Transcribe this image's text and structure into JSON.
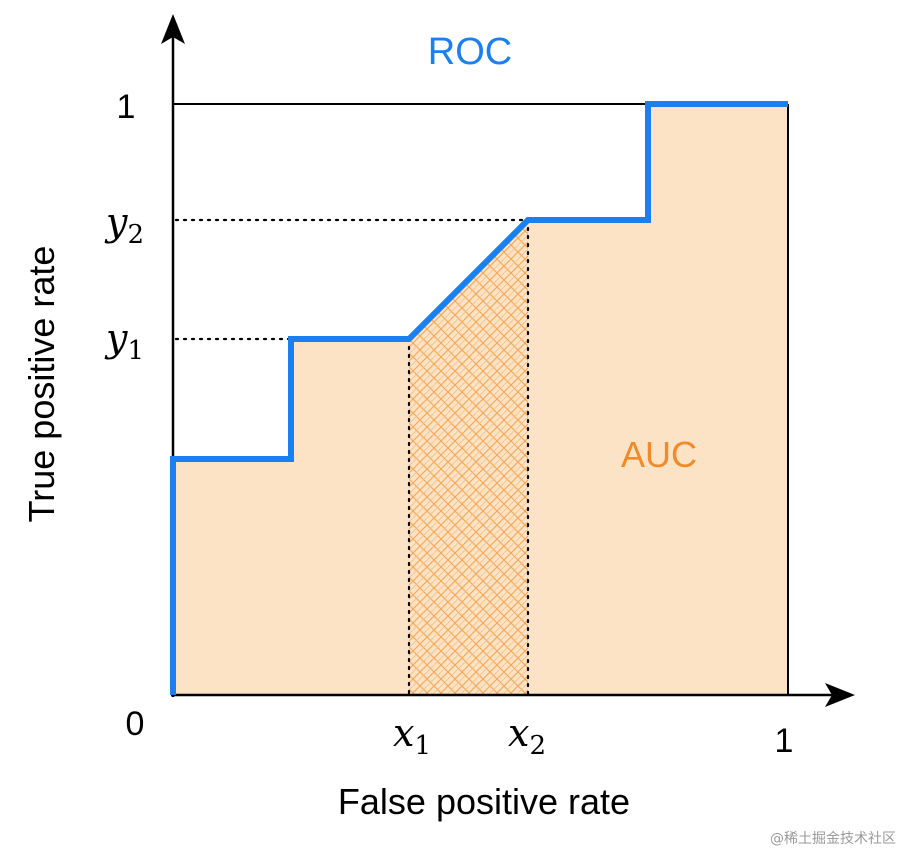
{
  "title": "ROC",
  "area_label": "AUC",
  "axes": {
    "xlabel": "False positive rate",
    "ylabel": "True positive rate",
    "origin_label": "0",
    "x_end_label": "1",
    "y_end_label": "1"
  },
  "markers": {
    "x1": {
      "base": "x",
      "sub": "1"
    },
    "x2": {
      "base": "x",
      "sub": "2"
    },
    "y1": {
      "base": "y",
      "sub": "1"
    },
    "y2": {
      "base": "y",
      "sub": "2"
    }
  },
  "watermark": "@稀土掘金技术社区",
  "colors": {
    "roc_line": "#1a80f0",
    "auc_fill": "#fde3c5",
    "hatch": "#f5a95a",
    "title": "#1a80f0",
    "area_label": "#f08a2a"
  }
}
